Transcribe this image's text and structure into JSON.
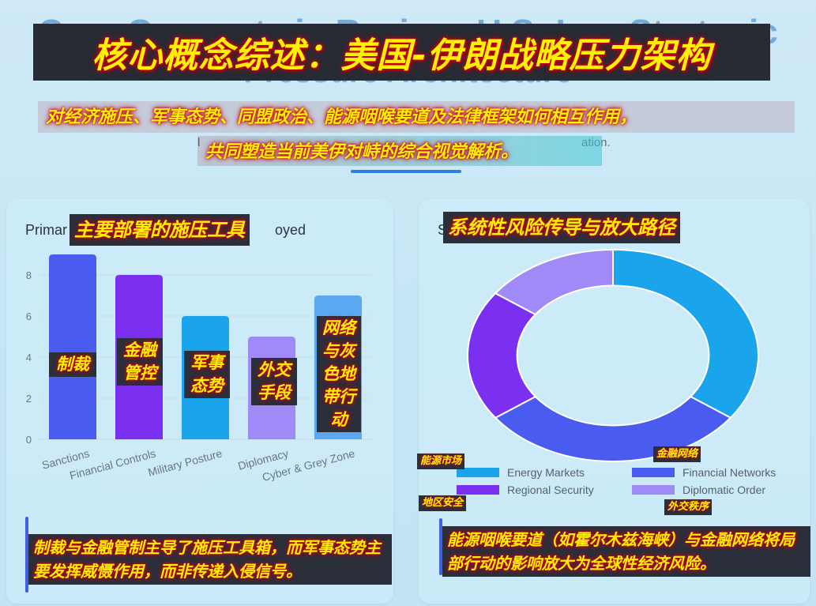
{
  "header": {
    "ghost_title_line1": "Core Concepts in Review: U.S.-Iran Strategic",
    "ghost_title_line2": "Pressure Architecture",
    "title": "核心概念综述：美国-伊朗战略压力架构",
    "subtitle_line1": "对经济施压、军事态势、同盟政治、能源咽喉要道及法律框架如何相互作用，",
    "subtitle_line2": "共同塑造当前美伊对峙的综合视觉解析。",
    "ghost_sub_left": "l",
    "ghost_sub_right": "ation."
  },
  "left_panel": {
    "ghost_title_left": "Primar",
    "ghost_title_right": "oyed",
    "title": "主要部署的施压工具",
    "note": "制裁与金融管制主导了施压工具箱，而军事态势主要发挥威慑作用，而非传递入侵信号。"
  },
  "right_panel": {
    "ghost_title_left": "S",
    "title": "系统性风险传导与放大路径",
    "tags": [
      "能源市场",
      "金融网络",
      "地区安全",
      "外交秩序"
    ],
    "note": "能源咽喉要道（如霍尔木兹海峡）与金融网络将局部行动的影响放大为全球性经济风险。"
  },
  "chart_data": [
    {
      "type": "bar",
      "categories": [
        "Sanctions",
        "Financial Controls",
        "Military Posture",
        "Diplomacy",
        "Cyber & Grey Zone"
      ],
      "category_labels_cn": [
        "制裁",
        "金融管控",
        "军事态势",
        "外交手段",
        "网络与灰色地带行动"
      ],
      "values": [
        9,
        8,
        6,
        5,
        7
      ],
      "colors": [
        "#4a5cf0",
        "#7b2ff0",
        "#19a4ec",
        "#a08af8",
        "#5ba8f0"
      ],
      "yticks": [
        0,
        2,
        4,
        6,
        8
      ],
      "ylim": [
        0,
        9
      ]
    },
    {
      "type": "pie",
      "categories": [
        "Energy Markets",
        "Financial Networks",
        "Regional Security",
        "Diplomatic Order"
      ],
      "values": [
        35,
        30,
        20,
        15
      ],
      "colors": [
        "#19a4ec",
        "#4a5cf0",
        "#7b2ff0",
        "#a08af8"
      ],
      "legend_position": "bottom"
    }
  ]
}
